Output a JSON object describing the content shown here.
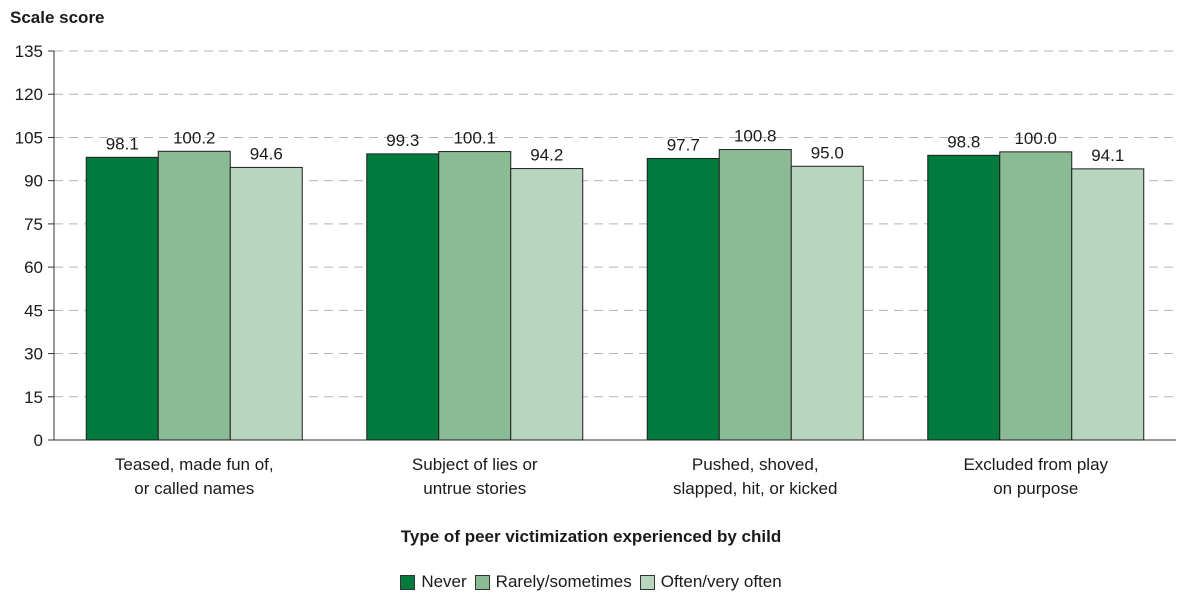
{
  "chart_data": {
    "type": "bar",
    "title": "",
    "ylabel": "Scale score",
    "xlabel": "Type of peer victimization experienced by child",
    "ylim": [
      0,
      135
    ],
    "yticks": [
      0,
      15,
      30,
      45,
      60,
      75,
      90,
      105,
      120,
      135
    ],
    "grid": true,
    "legend_position": "bottom",
    "categories": [
      [
        "Teased, made fun of,",
        "or called names"
      ],
      [
        "Subject of lies or",
        "untrue stories"
      ],
      [
        "Pushed, shoved,",
        "slapped, hit, or kicked"
      ],
      [
        "Excluded from play",
        "on purpose"
      ]
    ],
    "series": [
      {
        "name": "Never",
        "color": "#007a3d",
        "values": [
          98.1,
          99.3,
          97.7,
          98.8
        ],
        "labels": [
          "98.1",
          "99.3",
          "97.7",
          "98.8"
        ]
      },
      {
        "name": "Rarely/sometimes",
        "color": "#8abb94",
        "values": [
          100.2,
          100.1,
          100.8,
          100.0
        ],
        "labels": [
          "100.2",
          "100.1",
          "100.8",
          "100.0"
        ]
      },
      {
        "name": "Often/very often",
        "color": "#b8d6bf",
        "values": [
          94.6,
          94.2,
          95.0,
          94.1
        ],
        "labels": [
          "94.6",
          "94.2",
          "95.0",
          "94.1"
        ]
      }
    ]
  }
}
